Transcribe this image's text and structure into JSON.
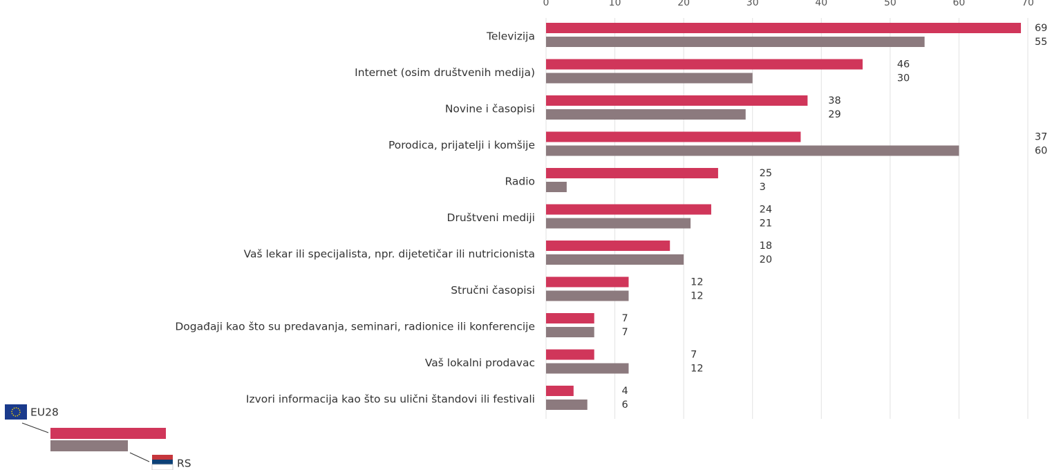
{
  "chart_data": {
    "type": "bar",
    "orientation": "horizontal",
    "categories": [
      "Televizija",
      "Internet (osim društvenih medija)",
      "Novine i časopisi",
      "Porodica, prijatelji i komšije",
      "Radio",
      "Društveni mediji",
      "Vaš lekar ili specijalista, npr. dijetetičar ili nutricionista",
      "Stručni časopisi",
      "Događaji kao što su predavanja, seminari, radionice ili konferencije",
      "Vaš lokalni prodavac",
      "Izvori informacija kao što su ulični štandovi ili festivali"
    ],
    "series": [
      {
        "name": "EU28",
        "color": "#d0365a",
        "values": [
          69,
          46,
          38,
          37,
          25,
          24,
          18,
          12,
          7,
          7,
          4
        ]
      },
      {
        "name": "RS",
        "color": "#8c7a7e",
        "values": [
          55,
          30,
          29,
          60,
          3,
          21,
          20,
          12,
          7,
          12,
          6
        ]
      }
    ],
    "xlim": [
      0,
      70
    ],
    "xticks": [
      0,
      10,
      20,
      30,
      40,
      50,
      60,
      70
    ],
    "grid": true,
    "legend": "bottom-left"
  }
}
